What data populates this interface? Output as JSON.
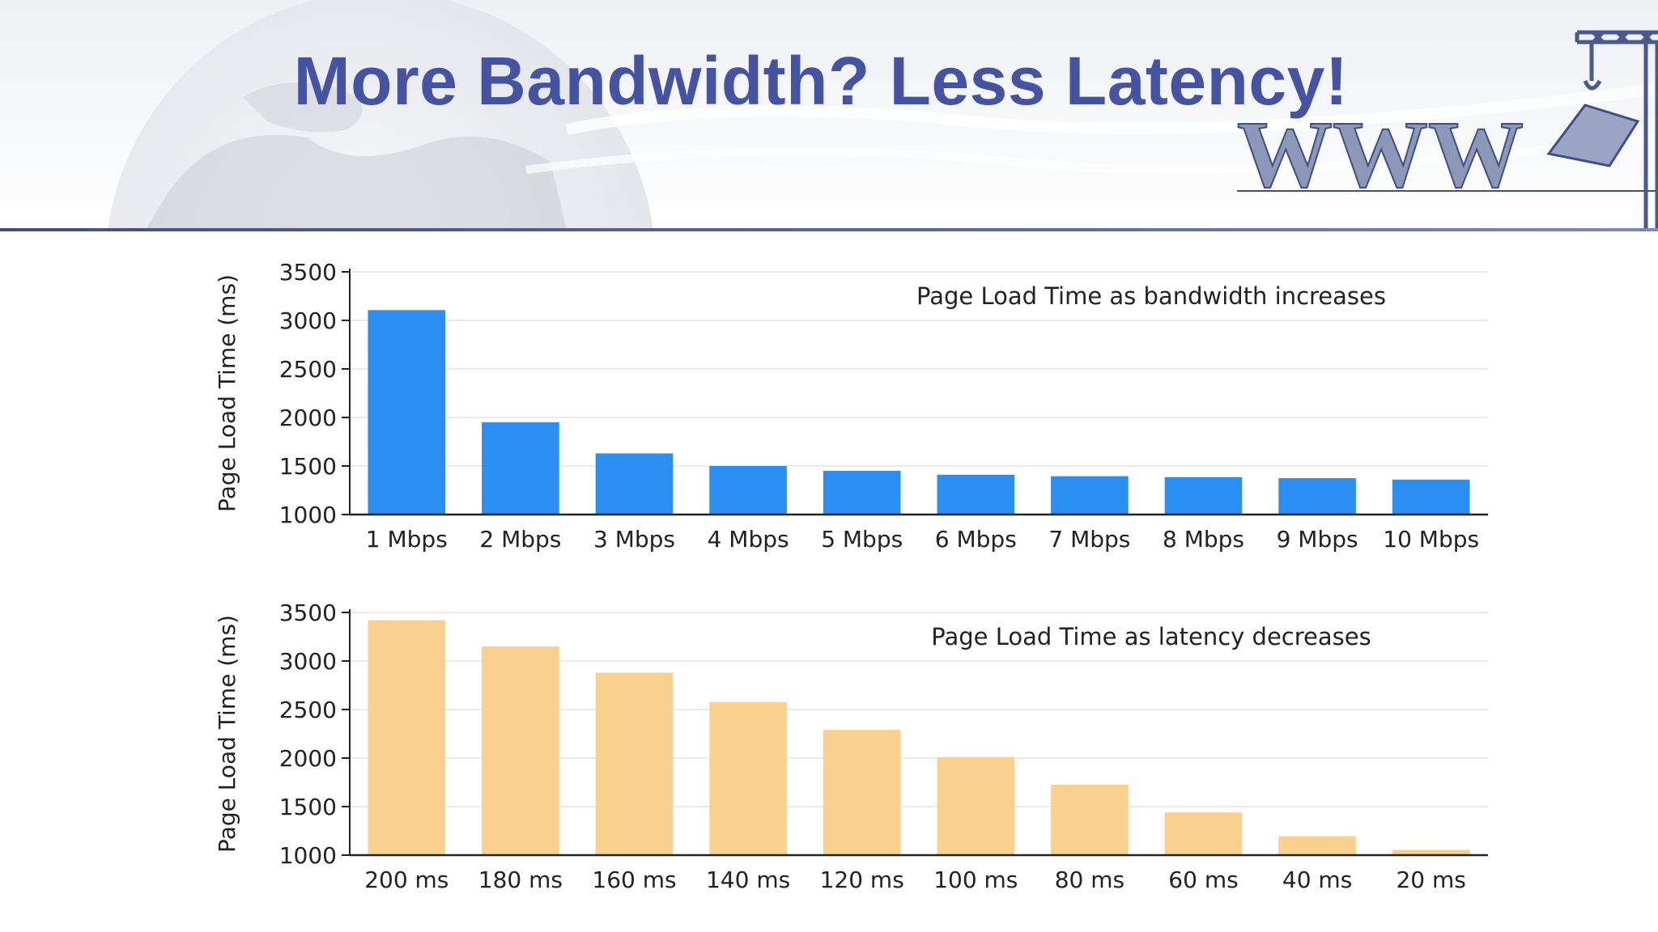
{
  "slide": {
    "title": "More Bandwidth? Less Latency!",
    "title_color": "#4554a2",
    "header_decoration_text": "WWW"
  },
  "chart_data": [
    {
      "type": "bar",
      "title": "Page Load Time as bandwidth increases",
      "xlabel": "",
      "ylabel": "Page Load Time (ms)",
      "ylim": [
        1000,
        3500
      ],
      "yticks": [
        1000,
        1500,
        2000,
        2500,
        3000,
        3500
      ],
      "grid": true,
      "color": "#2b8ff2",
      "categories": [
        "1 Mbps",
        "2 Mbps",
        "3 Mbps",
        "4 Mbps",
        "5 Mbps",
        "6 Mbps",
        "7 Mbps",
        "8 Mbps",
        "9 Mbps",
        "10 Mbps"
      ],
      "values": [
        3106,
        1950,
        1630,
        1500,
        1450,
        1410,
        1395,
        1385,
        1375,
        1360
      ]
    },
    {
      "type": "bar",
      "title": "Page Load Time as latency decreases",
      "xlabel": "",
      "ylabel": "Page Load Time (ms)",
      "ylim": [
        1000,
        3500
      ],
      "yticks": [
        1000,
        1500,
        2000,
        2500,
        3000,
        3500
      ],
      "grid": true,
      "color": "#f9d08e",
      "categories": [
        "200 ms",
        "180 ms",
        "160 ms",
        "140 ms",
        "120 ms",
        "100 ms",
        "80 ms",
        "60 ms",
        "40 ms",
        "20 ms"
      ],
      "values": [
        3420,
        3150,
        2880,
        2575,
        2290,
        2010,
        1725,
        1440,
        1195,
        1055
      ]
    }
  ]
}
